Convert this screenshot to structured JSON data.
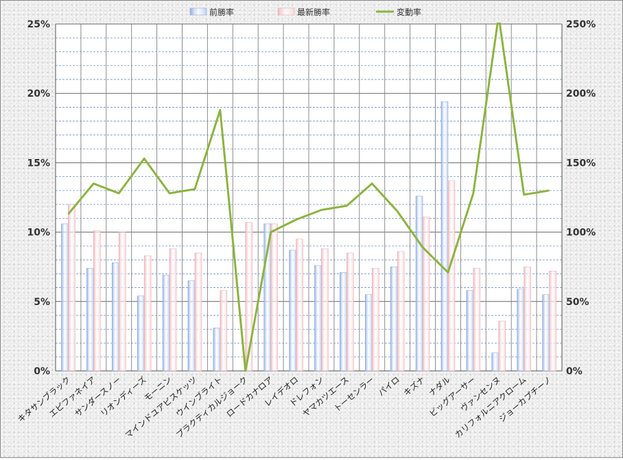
{
  "chart_data": {
    "type": "bar",
    "title": "",
    "xlabel": "",
    "ylabel": "",
    "legend_position": "top",
    "grid": true,
    "categories": [
      "キタサンブラック",
      "エピファネイア",
      "サンダースノー",
      "リオンディーズ",
      "モーニン",
      "マインドユアビスケッツ",
      "ウインブライト",
      "プラクティカルジョーク",
      "ロードカナロア",
      "レイデオロ",
      "ドレフォン",
      "ヤマカツエース",
      "トーセンラー",
      "パイロ",
      "キズナ",
      "ナダル",
      "ビッグアーサー",
      "ヴァンセンヌ",
      "カリフォルニアクローム",
      "ジョーカプチーノ"
    ],
    "series": [
      {
        "name": "前勝率",
        "type": "bar",
        "axis": "left",
        "color": "#9db8e8",
        "values": [
          10.6,
          7.4,
          7.8,
          5.4,
          6.9,
          6.5,
          3.1,
          0.0,
          10.6,
          8.7,
          7.6,
          7.1,
          5.5,
          7.5,
          12.6,
          19.4,
          5.8,
          1.3,
          5.9,
          5.5
        ]
      },
      {
        "name": "最新勝率",
        "type": "bar",
        "axis": "left",
        "color": "#f2c4c8",
        "values": [
          12.0,
          10.1,
          10.0,
          8.3,
          8.8,
          8.5,
          5.8,
          10.7,
          10.6,
          9.5,
          8.8,
          8.5,
          7.4,
          8.6,
          11.1,
          13.7,
          7.4,
          3.6,
          7.5,
          7.2
        ]
      },
      {
        "name": "変動率",
        "type": "line",
        "axis": "right",
        "color": "#8db33f",
        "values": [
          113,
          135,
          128,
          153,
          128,
          131,
          188,
          0,
          100,
          109,
          116,
          119,
          135,
          115,
          89,
          71,
          128,
          256,
          127,
          130
        ]
      }
    ],
    "y_left": {
      "min": 0,
      "max": 25,
      "ticks": [
        "0%",
        "5%",
        "10%",
        "15%",
        "20%",
        "25%"
      ]
    },
    "y_right": {
      "min": 0,
      "max": 250,
      "ticks": [
        "0%",
        "50%",
        "100%",
        "150%",
        "200%",
        "250%"
      ]
    }
  }
}
